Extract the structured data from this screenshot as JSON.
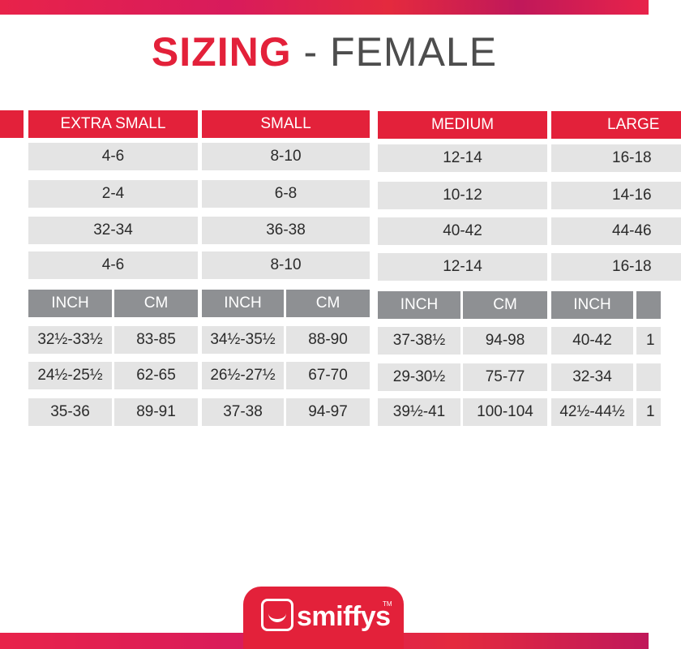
{
  "title": {
    "main": "SIZING",
    "sub": "- FEMALE"
  },
  "sizes": [
    "EXTRA SMALL",
    "SMALL",
    "MEDIUM",
    "LARGE"
  ],
  "size_rows": [
    [
      "4-6",
      "8-10",
      "12-14",
      "16-18"
    ],
    [
      "2-4",
      "6-8",
      "10-12",
      "14-16"
    ],
    [
      "32-34",
      "36-38",
      "40-42",
      "44-46"
    ],
    [
      "4-6",
      "8-10",
      "12-14",
      "16-18"
    ]
  ],
  "units": {
    "inch": "INCH",
    "cm": "CM"
  },
  "measurements": [
    {
      "extra_small": [
        "32½-33½",
        "83-85"
      ],
      "small": [
        "34½-35½",
        "88-90"
      ],
      "medium": [
        "37-38½",
        "94-98"
      ],
      "large": [
        "40-42",
        "1"
      ]
    },
    {
      "extra_small": [
        "24½-25½",
        "62-65"
      ],
      "small": [
        "26½-27½",
        "67-70"
      ],
      "medium": [
        "29-30½",
        "75-77"
      ],
      "large": [
        "32-34",
        ""
      ]
    },
    {
      "extra_small": [
        "35-36",
        "89-91"
      ],
      "small": [
        "37-38",
        "94-97"
      ],
      "medium": [
        "39½-41",
        "100-104"
      ],
      "large": [
        "42½-44½",
        "1"
      ]
    }
  ],
  "logo": {
    "text": "smiffys",
    "tm": "TM"
  },
  "colors": {
    "accent": "#e3213a",
    "cell": "#e4e4e4",
    "subheader": "#8e9093",
    "title_grey": "#4d4d4d"
  }
}
